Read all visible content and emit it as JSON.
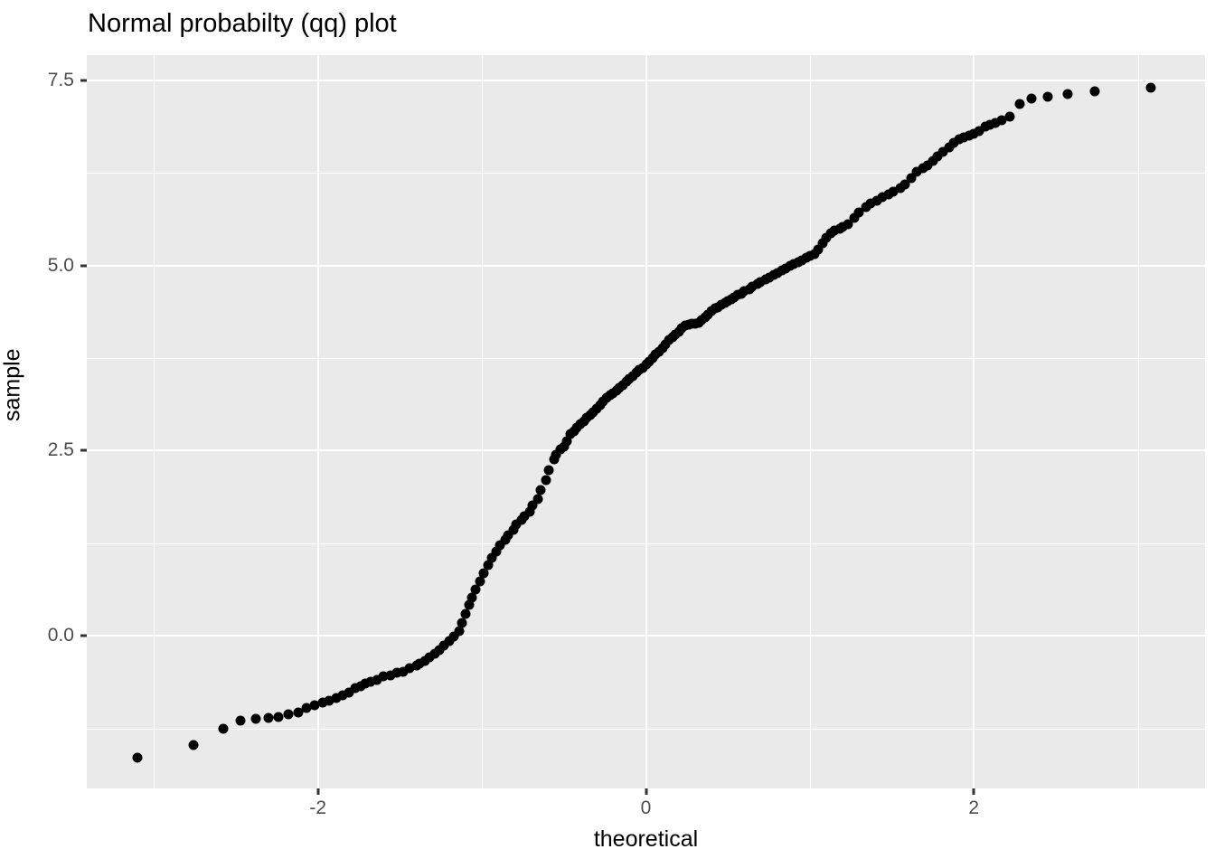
{
  "title": "Normal probabilty (qq) plot",
  "axes": {
    "x": {
      "title": "theoretical",
      "major_ticks": [
        -2,
        0,
        2
      ],
      "tick_labels": [
        "-2",
        "0",
        "2"
      ],
      "minor_gridlines": [
        -3,
        -1,
        1,
        3
      ],
      "domain": [
        -3.41,
        3.41
      ]
    },
    "y": {
      "title": "sample",
      "major_ticks": [
        0,
        2.5,
        5,
        7.5
      ],
      "tick_labels": [
        "0.0",
        "2.5",
        "5.0",
        "7.5"
      ],
      "minor_gridlines": [
        -1.25,
        1.25,
        3.75,
        6.25
      ],
      "domain": [
        -2.06,
        7.84
      ]
    }
  },
  "style": {
    "panel_background": "#EAEAEA",
    "gridline_color": "#FFFFFF",
    "point_color": "#000000",
    "tick_mark_color": "#333333",
    "tick_label_color": "#4D4D4D",
    "title_color": "#000000"
  },
  "chart_data": {
    "type": "scatter",
    "title": "Normal probabilty (qq) plot",
    "xlabel": "theoretical",
    "ylabel": "sample",
    "xlim": [
      -3.41,
      3.41
    ],
    "ylim": [
      -2.06,
      7.84
    ],
    "grid": "on",
    "legend": "none",
    "points": [
      [
        -3.1,
        -1.64
      ],
      [
        -2.76,
        -1.47
      ],
      [
        -2.58,
        -1.26
      ],
      [
        -2.47,
        -1.14
      ],
      [
        -2.38,
        -1.12
      ],
      [
        -2.3,
        -1.11
      ],
      [
        -2.24,
        -1.09
      ],
      [
        -2.18,
        -1.06
      ],
      [
        -2.12,
        -1.03
      ],
      [
        -2.07,
        -0.97
      ],
      [
        -2.02,
        -0.94
      ],
      [
        -1.97,
        -0.9
      ],
      [
        -1.93,
        -0.87
      ],
      [
        -1.89,
        -0.84
      ],
      [
        -1.85,
        -0.8
      ],
      [
        -1.81,
        -0.76
      ],
      [
        -1.77,
        -0.71
      ],
      [
        -1.74,
        -0.68
      ],
      [
        -1.71,
        -0.65
      ],
      [
        -1.68,
        -0.62
      ],
      [
        -1.64,
        -0.59
      ],
      [
        -1.6,
        -0.55
      ],
      [
        -1.56,
        -0.53
      ],
      [
        -1.52,
        -0.5
      ],
      [
        -1.48,
        -0.48
      ],
      [
        -1.44,
        -0.44
      ],
      [
        -1.4,
        -0.4
      ],
      [
        -1.38,
        -0.38
      ],
      [
        -1.35,
        -0.34
      ],
      [
        -1.32,
        -0.29
      ],
      [
        -1.29,
        -0.24
      ],
      [
        -1.26,
        -0.19
      ],
      [
        -1.23,
        -0.13
      ],
      [
        -1.2,
        -0.07
      ],
      [
        -1.17,
        -0.01
      ],
      [
        -1.14,
        0.07
      ],
      [
        -1.12,
        0.18
      ],
      [
        -1.1,
        0.3
      ],
      [
        -1.08,
        0.42
      ],
      [
        -1.06,
        0.52
      ],
      [
        -1.04,
        0.63
      ],
      [
        -1.01,
        0.73
      ],
      [
        -0.99,
        0.85
      ],
      [
        -0.96,
        0.95
      ],
      [
        -0.94,
        1.05
      ],
      [
        -0.91,
        1.14
      ],
      [
        -0.89,
        1.22
      ],
      [
        -0.86,
        1.3
      ],
      [
        -0.84,
        1.36
      ],
      [
        -0.81,
        1.43
      ],
      [
        -0.79,
        1.5
      ],
      [
        -0.76,
        1.57
      ],
      [
        -0.74,
        1.62
      ],
      [
        -0.71,
        1.68
      ],
      [
        -0.69,
        1.76
      ],
      [
        -0.66,
        1.85
      ],
      [
        -0.64,
        1.97
      ],
      [
        -0.61,
        2.1
      ],
      [
        -0.59,
        2.24
      ],
      [
        -0.56,
        2.38
      ],
      [
        -0.55,
        2.44
      ],
      [
        -0.52,
        2.52
      ],
      [
        -0.5,
        2.56
      ],
      [
        -0.48,
        2.63
      ],
      [
        -0.46,
        2.72
      ],
      [
        -0.44,
        2.76
      ],
      [
        -0.42,
        2.81
      ],
      [
        -0.4,
        2.86
      ],
      [
        -0.38,
        2.9
      ],
      [
        -0.36,
        2.94
      ],
      [
        -0.34,
        2.98
      ],
      [
        -0.32,
        3.02
      ],
      [
        -0.3,
        3.07
      ],
      [
        -0.28,
        3.12
      ],
      [
        -0.26,
        3.17
      ],
      [
        -0.24,
        3.21
      ],
      [
        -0.22,
        3.25
      ],
      [
        -0.2,
        3.28
      ],
      [
        -0.18,
        3.31
      ],
      [
        -0.16,
        3.35
      ],
      [
        -0.14,
        3.39
      ],
      [
        -0.12,
        3.43
      ],
      [
        -0.1,
        3.47
      ],
      [
        -0.08,
        3.51
      ],
      [
        -0.06,
        3.55
      ],
      [
        -0.04,
        3.59
      ],
      [
        -0.02,
        3.62
      ],
      [
        0.0,
        3.66
      ],
      [
        0.02,
        3.7
      ],
      [
        0.04,
        3.75
      ],
      [
        0.06,
        3.8
      ],
      [
        0.08,
        3.84
      ],
      [
        0.1,
        3.88
      ],
      [
        0.12,
        3.93
      ],
      [
        0.14,
        3.99
      ],
      [
        0.16,
        4.03
      ],
      [
        0.18,
        4.07
      ],
      [
        0.2,
        4.11
      ],
      [
        0.22,
        4.15
      ],
      [
        0.24,
        4.19
      ],
      [
        0.26,
        4.2
      ],
      [
        0.28,
        4.21
      ],
      [
        0.3,
        4.22
      ],
      [
        0.32,
        4.23
      ],
      [
        0.34,
        4.26
      ],
      [
        0.36,
        4.3
      ],
      [
        0.38,
        4.34
      ],
      [
        0.4,
        4.38
      ],
      [
        0.42,
        4.42
      ],
      [
        0.44,
        4.44
      ],
      [
        0.46,
        4.47
      ],
      [
        0.48,
        4.5
      ],
      [
        0.5,
        4.52
      ],
      [
        0.52,
        4.55
      ],
      [
        0.54,
        4.57
      ],
      [
        0.56,
        4.6
      ],
      [
        0.58,
        4.62
      ],
      [
        0.6,
        4.65
      ],
      [
        0.63,
        4.68
      ],
      [
        0.65,
        4.72
      ],
      [
        0.68,
        4.75
      ],
      [
        0.7,
        4.78
      ],
      [
        0.73,
        4.81
      ],
      [
        0.75,
        4.84
      ],
      [
        0.78,
        4.87
      ],
      [
        0.8,
        4.9
      ],
      [
        0.83,
        4.93
      ],
      [
        0.85,
        4.96
      ],
      [
        0.88,
        4.99
      ],
      [
        0.9,
        5.02
      ],
      [
        0.93,
        5.04
      ],
      [
        0.95,
        5.07
      ],
      [
        0.98,
        5.1
      ],
      [
        1.0,
        5.13
      ],
      [
        1.03,
        5.15
      ],
      [
        1.05,
        5.22
      ],
      [
        1.08,
        5.3
      ],
      [
        1.1,
        5.38
      ],
      [
        1.13,
        5.44
      ],
      [
        1.15,
        5.47
      ],
      [
        1.18,
        5.5
      ],
      [
        1.2,
        5.52
      ],
      [
        1.23,
        5.56
      ],
      [
        1.27,
        5.64
      ],
      [
        1.3,
        5.72
      ],
      [
        1.34,
        5.79
      ],
      [
        1.37,
        5.84
      ],
      [
        1.41,
        5.88
      ],
      [
        1.44,
        5.92
      ],
      [
        1.48,
        5.96
      ],
      [
        1.51,
        6.0
      ],
      [
        1.55,
        6.04
      ],
      [
        1.58,
        6.1
      ],
      [
        1.62,
        6.18
      ],
      [
        1.65,
        6.27
      ],
      [
        1.69,
        6.32
      ],
      [
        1.72,
        6.35
      ],
      [
        1.75,
        6.41
      ],
      [
        1.78,
        6.47
      ],
      [
        1.81,
        6.53
      ],
      [
        1.85,
        6.6
      ],
      [
        1.88,
        6.65
      ],
      [
        1.91,
        6.7
      ],
      [
        1.94,
        6.73
      ],
      [
        1.97,
        6.75
      ],
      [
        2.0,
        6.78
      ],
      [
        2.03,
        6.81
      ],
      [
        2.07,
        6.87
      ],
      [
        2.1,
        6.9
      ],
      [
        2.13,
        6.93
      ],
      [
        2.17,
        6.96
      ],
      [
        2.22,
        7.01
      ],
      [
        2.28,
        7.18
      ],
      [
        2.35,
        7.25
      ],
      [
        2.45,
        7.28
      ],
      [
        2.57,
        7.31
      ],
      [
        2.74,
        7.35
      ],
      [
        3.08,
        7.4
      ]
    ]
  }
}
